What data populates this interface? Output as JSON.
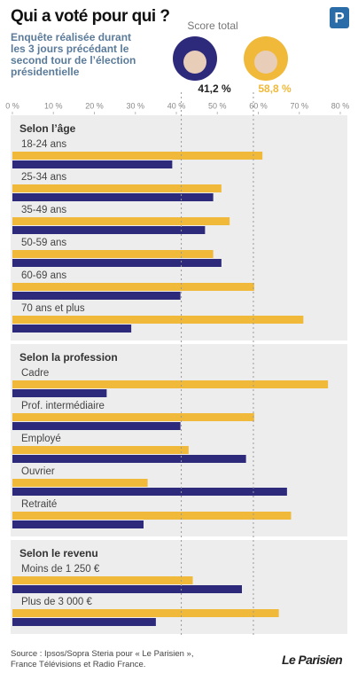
{
  "chart_data": {
    "type": "bar",
    "title": "Qui a voté pour qui ?",
    "subtitle": "Enquête réalisée durant les 3 jours précédant le second tour de l’élection présidentielle",
    "logo": "P",
    "totals": {
      "label": "Score total",
      "values": [
        41.2,
        58.8
      ],
      "value_labels": [
        "41,2 %",
        "58,8 %"
      ],
      "colors": [
        "#2d2a7b",
        "#f0b93a"
      ]
    },
    "xlim": [
      0,
      80
    ],
    "xticks": [
      {
        "value": 0,
        "label": "0 %"
      },
      {
        "value": 10,
        "label": "10 %"
      },
      {
        "value": 20,
        "label": "20 %"
      },
      {
        "value": 30,
        "label": "30 %"
      },
      {
        "value": 40,
        "label": "40 %"
      },
      {
        "value": 50,
        "label": "50 %"
      },
      {
        "value": 60,
        "label": "60 %"
      },
      {
        "value": 70,
        "label": "70 %"
      },
      {
        "value": 80,
        "label": "80 %"
      }
    ],
    "groups": [
      {
        "title": "Selon l’âge",
        "categories": [
          "18-24 ans",
          "25-34 ans",
          "35-49 ans",
          "50-59 ans",
          "60-69 ans",
          "70 ans et plus"
        ],
        "series": [
          {
            "color": "#2d2a7b",
            "values": [
              39,
              49,
              47,
              51,
              41,
              29
            ]
          },
          {
            "color": "#f0b93a",
            "values": [
              61,
              51,
              53,
              49,
              59,
              71
            ]
          }
        ]
      },
      {
        "title": "Selon la profession",
        "categories": [
          "Cadre",
          "Prof. intermédiaire",
          "Employé",
          "Ouvrier",
          "Retraité"
        ],
        "series": [
          {
            "color": "#2d2a7b",
            "values": [
              23,
              41,
              57,
              67,
              32
            ]
          },
          {
            "color": "#f0b93a",
            "values": [
              77,
              59,
              43,
              33,
              68
            ]
          }
        ]
      },
      {
        "title": "Selon le revenu",
        "categories": [
          "Moins de 1 250 €",
          "Plus de 3 000 €"
        ],
        "series": [
          {
            "color": "#2d2a7b",
            "values": [
              56,
              35
            ]
          },
          {
            "color": "#f0b93a",
            "values": [
              44,
              65
            ]
          }
        ]
      }
    ],
    "source": "Source : Ipsos/Sopra Steria pour « Le Parisien », France Télévisions et Radio France.",
    "brand": "Le Parisien"
  }
}
